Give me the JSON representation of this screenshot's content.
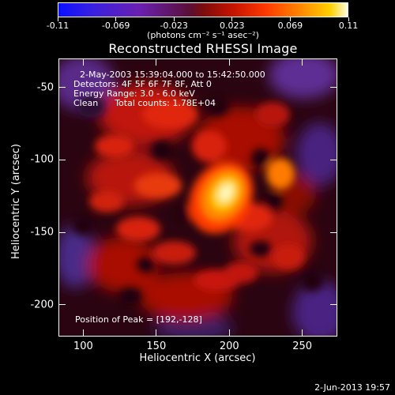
{
  "chart_data": {
    "type": "heatmap",
    "title": "Reconstructed RHESSI Image",
    "colorbar": {
      "tick_labels": [
        "-0.11",
        "-0.069",
        "-0.023",
        "0.023",
        "0.069",
        "0.11"
      ],
      "unit_label": "(photons cm⁻² s⁻¹ asec⁻²)",
      "range": [
        -0.11,
        0.11
      ],
      "colors": [
        "#1a1aff",
        "#6a1fb5",
        "#7a0d2a",
        "#ff2a00",
        "#ff9a00",
        "#ffffcc"
      ]
    },
    "xlabel": "Heliocentric X (arcsec)",
    "ylabel": "Heliocentric Y (arcsec)",
    "xlim": [
      83,
      274
    ],
    "ylim": [
      -222,
      -30
    ],
    "xticks": [
      {
        "label": "100",
        "value": 100
      },
      {
        "label": "150",
        "value": 150
      },
      {
        "label": "200",
        "value": 200
      },
      {
        "label": "250",
        "value": 250
      }
    ],
    "yticks": [
      {
        "label": "-50",
        "value": -50
      },
      {
        "label": "-100",
        "value": -100
      },
      {
        "label": "-150",
        "value": -150
      },
      {
        "label": "-200",
        "value": -200
      }
    ],
    "annotations": {
      "time_range": "2-May-2003 15:39:04.000 to 15:42:50.000",
      "detectors": "Detectors: 4F 5F 6F 7F 8F, Att 0",
      "energy": "Energy Range: 3.0 - 6.0 keV",
      "clean": "Clean      Total counts: 1.78E+04",
      "peak": "Position of Peak = [192,-128]"
    },
    "peak_position": [
      192,
      -128
    ]
  },
  "footer": {
    "date": "2-Jun-2013 19:57"
  }
}
